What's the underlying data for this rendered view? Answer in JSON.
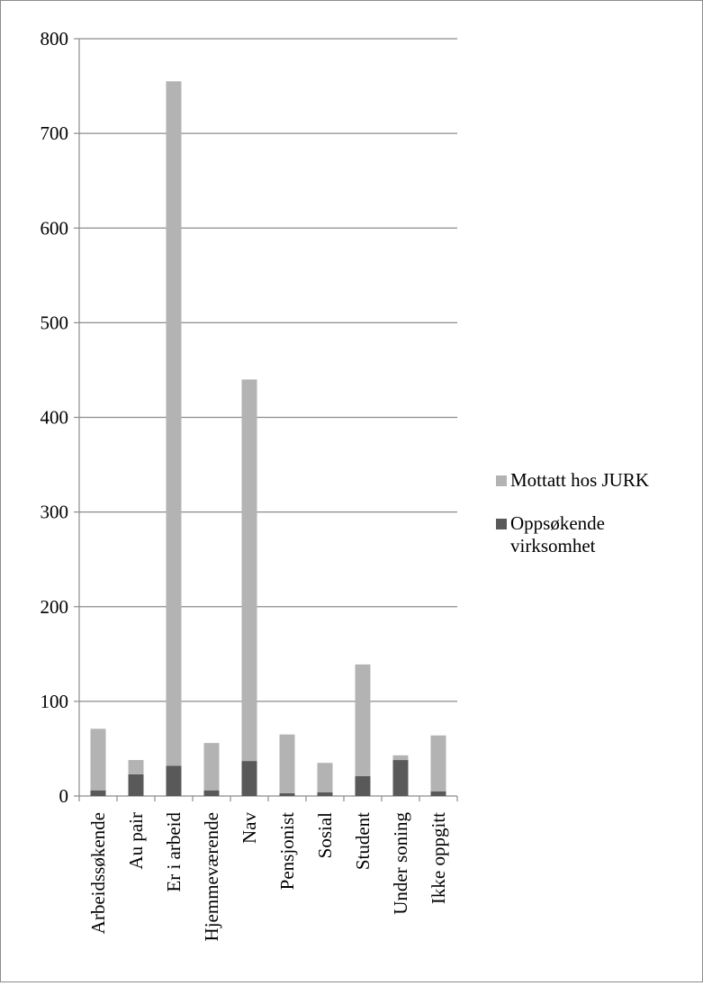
{
  "chart_data": {
    "type": "bar",
    "stacked": true,
    "categories": [
      "Arbeidssøkende",
      "Au pair",
      "Er i arbeid",
      "Hjemmeværende",
      "Nav",
      "Pensjonist",
      "Sosial",
      "Student",
      "Under soning",
      "Ikke oppgitt"
    ],
    "series": [
      {
        "name": "Oppsøkende virksomhet",
        "color": "#595959",
        "values": [
          6,
          23,
          32,
          6,
          37,
          3,
          4,
          21,
          38,
          5
        ]
      },
      {
        "name": "Mottatt hos JURK",
        "color": "#b3b3b3",
        "values": [
          65,
          15,
          723,
          50,
          403,
          62,
          31,
          118,
          5,
          59
        ]
      }
    ],
    "ylim": [
      0,
      800
    ],
    "yticks": [
      0,
      100,
      200,
      300,
      400,
      500,
      600,
      700,
      800
    ],
    "grid": true,
    "legend_position": "right",
    "title": "",
    "xlabel": "",
    "ylabel": ""
  },
  "legend": {
    "items": [
      {
        "label_line1": "Mottatt hos JURK",
        "label_line2": "",
        "color": "#b3b3b3"
      },
      {
        "label_line1": "Oppsøkende",
        "label_line2": "virksomhet",
        "color": "#595959"
      }
    ]
  }
}
